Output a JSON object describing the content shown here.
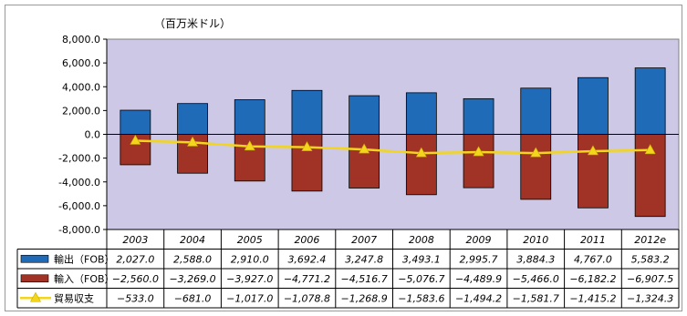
{
  "chart_data": {
    "type": "bar",
    "unit_label": "（百万米ドル）",
    "categories": [
      "2003",
      "2004",
      "2005",
      "2006",
      "2007",
      "2008",
      "2009",
      "2010",
      "2011",
      "2012e"
    ],
    "series": [
      {
        "name": "輸出（FOB）",
        "kind": "bar",
        "color": "#1f6bb8",
        "values": [
          2027.0,
          2588.0,
          2910.0,
          3692.4,
          3247.8,
          3493.1,
          2995.7,
          3884.3,
          4767.0,
          5583.2
        ],
        "display": [
          "2,027.0",
          "2,588.0",
          "2,910.0",
          "3,692.4",
          "3,247.8",
          "3,493.1",
          "2,995.7",
          "3,884.3",
          "4,767.0",
          "5,583.2"
        ]
      },
      {
        "name": "輸入（FOB）",
        "kind": "bar",
        "color": "#a03325",
        "values": [
          -2560.0,
          -3269.0,
          -3927.0,
          -4771.2,
          -4516.7,
          -5076.7,
          -4489.9,
          -5466.0,
          -6182.2,
          -6907.5
        ],
        "display": [
          "−2,560.0",
          "−3,269.0",
          "−3,927.0",
          "−4,771.2",
          "−4,516.7",
          "−5,076.7",
          "−4,489.9",
          "−5,466.0",
          "−6,182.2",
          "−6,907.5"
        ]
      },
      {
        "name": "貿易収支",
        "kind": "line",
        "color": "#f2d51c",
        "values": [
          -533.0,
          -681.0,
          -1017.0,
          -1078.8,
          -1268.9,
          -1583.6,
          -1494.2,
          -1581.7,
          -1415.2,
          -1324.3
        ],
        "display": [
          "−533.0",
          "−681.0",
          "−1,017.0",
          "−1,078.8",
          "−1,268.9",
          "−1,583.6",
          "−1,494.2",
          "−1,581.7",
          "−1,415.2",
          "−1,324.3"
        ]
      }
    ],
    "ylim": [
      -8000,
      8000
    ],
    "yticks": [
      -8000,
      -6000,
      -4000,
      -2000,
      0,
      2000,
      4000,
      6000,
      8000
    ],
    "ytick_labels": [
      "-8,000.0",
      "-6,000.0",
      "-4,000.0",
      "-2,000.0",
      "0.0",
      "2,000.0",
      "4,000.0",
      "6,000.0",
      "8,000.0"
    ],
    "plot_background": "#ccc8e6",
    "grid": false,
    "legend": "data-table"
  }
}
